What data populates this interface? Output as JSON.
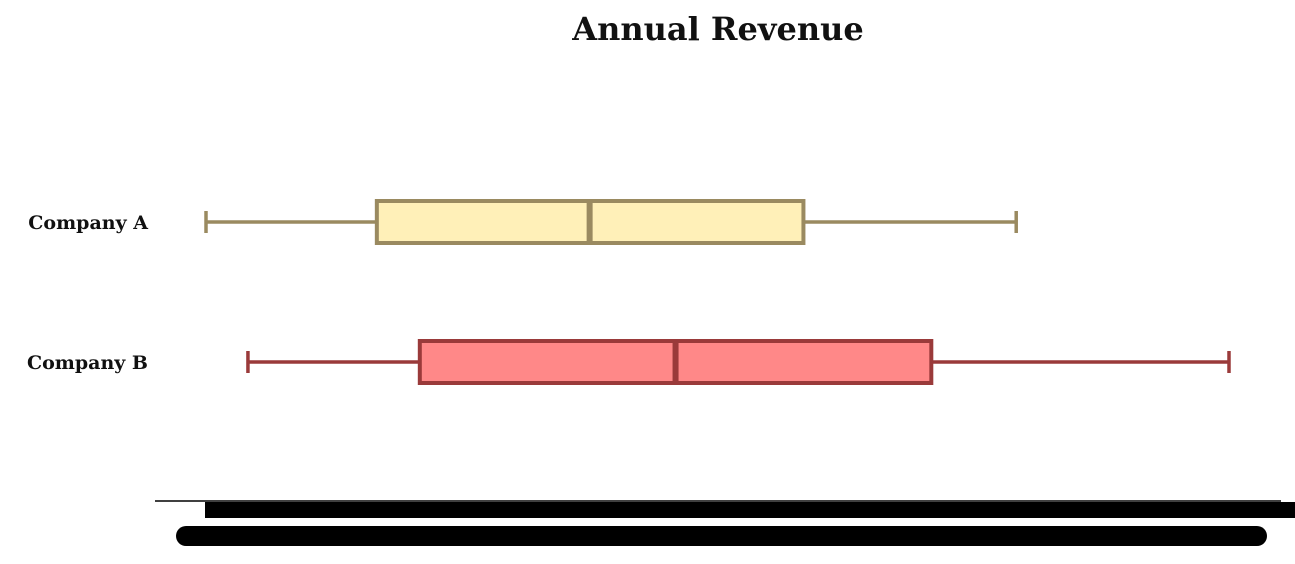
{
  "chart_data": {
    "type": "boxplot",
    "title": "Annual Revenue",
    "xlabel": "",
    "ylabel": "",
    "orientation": "horizontal",
    "categories": [
      "Company A",
      "Company B"
    ],
    "xlim": [
      0,
      10
    ],
    "ticks": [
      0,
      1,
      2,
      3,
      4,
      5,
      6,
      7,
      8,
      9,
      10
    ],
    "tick_labels": [
      "",
      "",
      "",
      "",
      "",
      "",
      "",
      "",
      "",
      "",
      ""
    ],
    "grid": false,
    "series": [
      {
        "name": "Company A",
        "whisker_low": 0.0,
        "q1": 1.67,
        "median": 3.75,
        "q3": 5.84,
        "whisker_high": 7.92,
        "fill": "#fff0b8",
        "edge": "#9a8a60"
      },
      {
        "name": "Company B",
        "whisker_low": 0.41,
        "q1": 2.09,
        "median": 4.59,
        "q3": 7.09,
        "whisker_high": 10.0,
        "fill": "#ff8888",
        "edge": "#9a3a3a"
      }
    ]
  }
}
